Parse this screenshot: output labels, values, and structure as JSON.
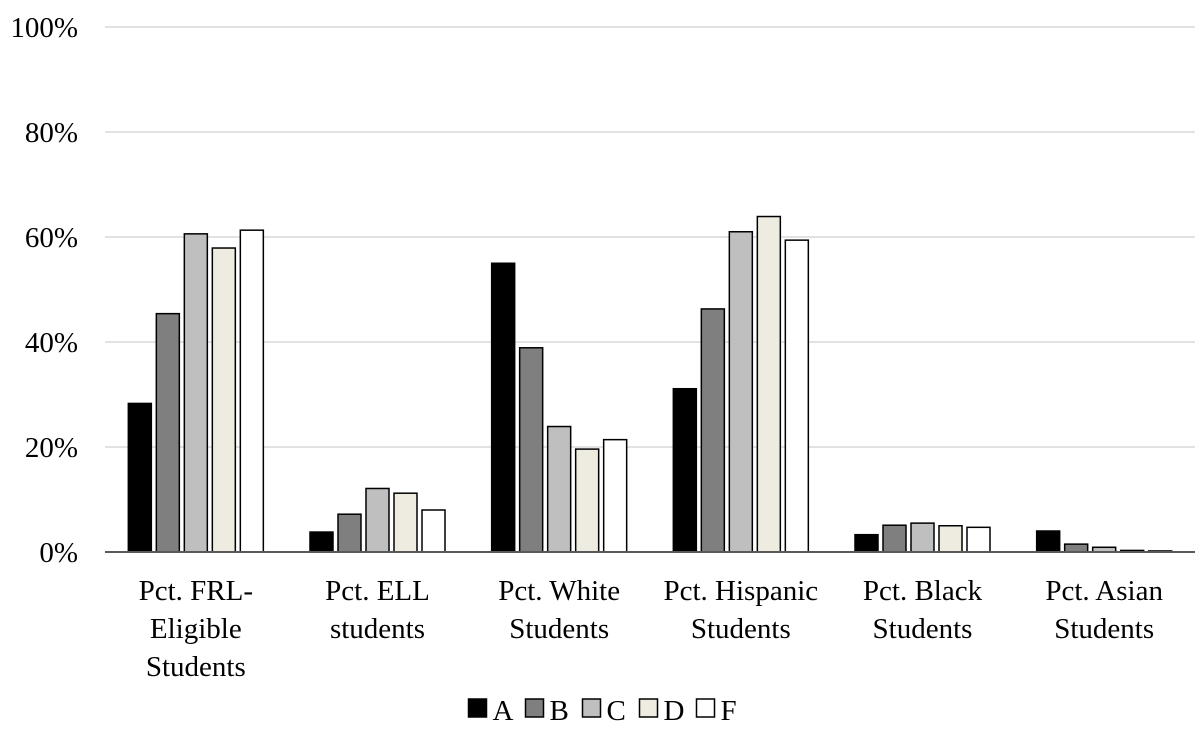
{
  "chart_data": {
    "type": "bar",
    "categories": [
      "Pct. FRL-Eligible Students",
      "Pct. ELL students",
      "Pct. White Students",
      "Pct. Hispanic Students",
      "Pct. Black Students",
      "Pct. Asian Students"
    ],
    "category_label_lines": [
      [
        "Pct. FRL-",
        "Eligible",
        "Students"
      ],
      [
        "Pct. ELL",
        "students"
      ],
      [
        "Pct. White",
        "Students"
      ],
      [
        "Pct. Hispanic",
        "Students"
      ],
      [
        "Pct. Black",
        "Students"
      ],
      [
        "Pct. Asian",
        "Students"
      ]
    ],
    "series": [
      {
        "name": "A",
        "color": "#000000",
        "values": [
          28.3,
          3.8,
          55.0,
          31.1,
          3.3,
          4.0
        ]
      },
      {
        "name": "B",
        "color": "#7f7f7f",
        "values": [
          45.4,
          7.2,
          38.9,
          46.3,
          5.1,
          1.5
        ]
      },
      {
        "name": "C",
        "color": "#bfbfbf",
        "values": [
          60.6,
          12.1,
          23.9,
          61.0,
          5.5,
          0.9
        ]
      },
      {
        "name": "D",
        "color": "#eeece1",
        "values": [
          57.9,
          11.2,
          19.6,
          63.9,
          5.0,
          0.3
        ]
      },
      {
        "name": "F",
        "color": "#ffffff",
        "values": [
          61.3,
          8.0,
          21.4,
          59.4,
          4.7,
          0.2
        ]
      }
    ],
    "ylim": [
      0,
      100
    ],
    "yticks": [
      0,
      20,
      40,
      60,
      80,
      100
    ],
    "ytick_labels": [
      "0%",
      "20%",
      "40%",
      "60%",
      "80%",
      "100%"
    ],
    "grid": true,
    "legend_position": "bottom",
    "title": "",
    "xlabel": "",
    "ylabel": ""
  }
}
